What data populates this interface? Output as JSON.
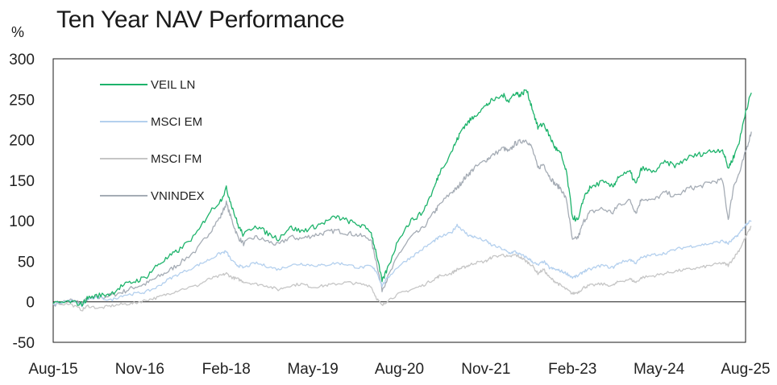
{
  "chart_data": {
    "type": "line",
    "title": "Ten Year NAV Performance",
    "ylabel": "%",
    "xlabel": "",
    "ylim": [
      -50,
      300
    ],
    "yticks": [
      300,
      250,
      200,
      150,
      100,
      50,
      0,
      -50
    ],
    "x_ticks": [
      "Aug-15",
      "Nov-16",
      "Feb-18",
      "May-19",
      "Aug-20",
      "Nov-21",
      "Feb-23",
      "May-24",
      "Aug-25"
    ],
    "x_range": [
      0,
      120
    ],
    "legend_position": "top-left",
    "series": [
      {
        "name": "VEIL LN",
        "color": "#1db36b",
        "points": [
          [
            0,
            -2
          ],
          [
            3,
            0
          ],
          [
            5,
            -3
          ],
          [
            6,
            5
          ],
          [
            8,
            8
          ],
          [
            10,
            10
          ],
          [
            12,
            20
          ],
          [
            14,
            25
          ],
          [
            16,
            30
          ],
          [
            18,
            45
          ],
          [
            20,
            55
          ],
          [
            22,
            65
          ],
          [
            25,
            85
          ],
          [
            27,
            110
          ],
          [
            29,
            125
          ],
          [
            30,
            140
          ],
          [
            31,
            118
          ],
          [
            32,
            95
          ],
          [
            33,
            82
          ],
          [
            35,
            95
          ],
          [
            37,
            85
          ],
          [
            39,
            78
          ],
          [
            41,
            92
          ],
          [
            43,
            87
          ],
          [
            45,
            92
          ],
          [
            47,
            98
          ],
          [
            49,
            105
          ],
          [
            51,
            100
          ],
          [
            53,
            95
          ],
          [
            55,
            88
          ],
          [
            56,
            60
          ],
          [
            57,
            25
          ],
          [
            58,
            42
          ],
          [
            60,
            80
          ],
          [
            62,
            100
          ],
          [
            64,
            110
          ],
          [
            66,
            140
          ],
          [
            67,
            160
          ],
          [
            69,
            185
          ],
          [
            70,
            200
          ],
          [
            71,
            215
          ],
          [
            72,
            222
          ],
          [
            73,
            230
          ],
          [
            75,
            242
          ],
          [
            76,
            248
          ],
          [
            78,
            255
          ],
          [
            79,
            248
          ],
          [
            80,
            258
          ],
          [
            81,
            255
          ],
          [
            82,
            262
          ],
          [
            83,
            240
          ],
          [
            84,
            215
          ],
          [
            85,
            220
          ],
          [
            86,
            205
          ],
          [
            87,
            190
          ],
          [
            88,
            182
          ],
          [
            89,
            158
          ],
          [
            90,
            105
          ],
          [
            91,
            100
          ],
          [
            92,
            130
          ],
          [
            93,
            140
          ],
          [
            95,
            148
          ],
          [
            97,
            142
          ],
          [
            98,
            155
          ],
          [
            100,
            160
          ],
          [
            101,
            145
          ],
          [
            102,
            165
          ],
          [
            104,
            160
          ],
          [
            106,
            172
          ],
          [
            108,
            168
          ],
          [
            110,
            178
          ],
          [
            112,
            182
          ],
          [
            114,
            186
          ],
          [
            116,
            188
          ],
          [
            117,
            165
          ],
          [
            118,
            180
          ],
          [
            119,
            200
          ],
          [
            120,
            235
          ],
          [
            121,
            258
          ]
        ]
      },
      {
        "name": "MSCI EM",
        "color": "#b4d0ee",
        "points": [
          [
            0,
            -3
          ],
          [
            3,
            2
          ],
          [
            5,
            -5
          ],
          [
            6,
            3
          ],
          [
            8,
            5
          ],
          [
            10,
            2
          ],
          [
            12,
            8
          ],
          [
            14,
            10
          ],
          [
            16,
            12
          ],
          [
            18,
            18
          ],
          [
            20,
            28
          ],
          [
            22,
            35
          ],
          [
            25,
            45
          ],
          [
            27,
            52
          ],
          [
            29,
            60
          ],
          [
            30,
            62
          ],
          [
            31,
            50
          ],
          [
            32,
            45
          ],
          [
            33,
            42
          ],
          [
            35,
            48
          ],
          [
            37,
            44
          ],
          [
            39,
            40
          ],
          [
            41,
            45
          ],
          [
            43,
            47
          ],
          [
            45,
            45
          ],
          [
            47,
            45
          ],
          [
            49,
            48
          ],
          [
            51,
            46
          ],
          [
            53,
            42
          ],
          [
            55,
            44
          ],
          [
            56,
            38
          ],
          [
            57,
            20
          ],
          [
            58,
            30
          ],
          [
            60,
            45
          ],
          [
            62,
            55
          ],
          [
            64,
            65
          ],
          [
            66,
            75
          ],
          [
            67,
            80
          ],
          [
            69,
            85
          ],
          [
            70,
            95
          ],
          [
            71,
            88
          ],
          [
            72,
            82
          ],
          [
            73,
            80
          ],
          [
            75,
            75
          ],
          [
            76,
            70
          ],
          [
            78,
            65
          ],
          [
            79,
            60
          ],
          [
            80,
            62
          ],
          [
            81,
            58
          ],
          [
            82,
            55
          ],
          [
            83,
            50
          ],
          [
            84,
            45
          ],
          [
            85,
            50
          ],
          [
            86,
            42
          ],
          [
            87,
            40
          ],
          [
            88,
            38
          ],
          [
            89,
            35
          ],
          [
            90,
            30
          ],
          [
            91,
            32
          ],
          [
            92,
            38
          ],
          [
            93,
            40
          ],
          [
            95,
            45
          ],
          [
            97,
            42
          ],
          [
            98,
            48
          ],
          [
            100,
            52
          ],
          [
            101,
            48
          ],
          [
            102,
            55
          ],
          [
            104,
            58
          ],
          [
            106,
            60
          ],
          [
            108,
            65
          ],
          [
            110,
            68
          ],
          [
            112,
            70
          ],
          [
            114,
            72
          ],
          [
            116,
            75
          ],
          [
            117,
            72
          ],
          [
            118,
            78
          ],
          [
            119,
            85
          ],
          [
            120,
            95
          ],
          [
            121,
            100
          ]
        ]
      },
      {
        "name": "MSCI FM",
        "color": "#c6c6c6",
        "points": [
          [
            0,
            -2
          ],
          [
            3,
            -3
          ],
          [
            5,
            -10
          ],
          [
            6,
            -5
          ],
          [
            8,
            -8
          ],
          [
            10,
            -5
          ],
          [
            12,
            -3
          ],
          [
            14,
            -2
          ],
          [
            16,
            2
          ],
          [
            18,
            5
          ],
          [
            20,
            10
          ],
          [
            22,
            15
          ],
          [
            25,
            20
          ],
          [
            27,
            28
          ],
          [
            29,
            32
          ],
          [
            30,
            35
          ],
          [
            31,
            30
          ],
          [
            32,
            28
          ],
          [
            33,
            25
          ],
          [
            35,
            22
          ],
          [
            37,
            20
          ],
          [
            39,
            15
          ],
          [
            41,
            20
          ],
          [
            43,
            22
          ],
          [
            45,
            18
          ],
          [
            47,
            20
          ],
          [
            49,
            22
          ],
          [
            51,
            24
          ],
          [
            53,
            22
          ],
          [
            55,
            20
          ],
          [
            56,
            5
          ],
          [
            57,
            -5
          ],
          [
            58,
            2
          ],
          [
            60,
            10
          ],
          [
            62,
            15
          ],
          [
            64,
            20
          ],
          [
            66,
            28
          ],
          [
            67,
            32
          ],
          [
            69,
            35
          ],
          [
            70,
            40
          ],
          [
            71,
            42
          ],
          [
            72,
            45
          ],
          [
            73,
            48
          ],
          [
            75,
            50
          ],
          [
            76,
            55
          ],
          [
            78,
            58
          ],
          [
            79,
            55
          ],
          [
            80,
            58
          ],
          [
            81,
            55
          ],
          [
            82,
            50
          ],
          [
            83,
            45
          ],
          [
            84,
            35
          ],
          [
            85,
            40
          ],
          [
            86,
            30
          ],
          [
            87,
            25
          ],
          [
            88,
            20
          ],
          [
            89,
            15
          ],
          [
            90,
            10
          ],
          [
            91,
            12
          ],
          [
            92,
            18
          ],
          [
            93,
            20
          ],
          [
            95,
            22
          ],
          [
            97,
            20
          ],
          [
            98,
            25
          ],
          [
            100,
            28
          ],
          [
            101,
            24
          ],
          [
            102,
            30
          ],
          [
            104,
            32
          ],
          [
            106,
            35
          ],
          [
            108,
            38
          ],
          [
            110,
            40
          ],
          [
            112,
            42
          ],
          [
            114,
            45
          ],
          [
            116,
            48
          ],
          [
            117,
            45
          ],
          [
            118,
            55
          ],
          [
            119,
            65
          ],
          [
            120,
            80
          ],
          [
            121,
            93
          ]
        ]
      },
      {
        "name": "VNINDEX",
        "color": "#a5acb5",
        "points": [
          [
            0,
            -3
          ],
          [
            3,
            2
          ],
          [
            5,
            -2
          ],
          [
            6,
            4
          ],
          [
            8,
            5
          ],
          [
            10,
            8
          ],
          [
            12,
            12
          ],
          [
            14,
            18
          ],
          [
            16,
            22
          ],
          [
            18,
            30
          ],
          [
            20,
            38
          ],
          [
            22,
            48
          ],
          [
            25,
            65
          ],
          [
            27,
            85
          ],
          [
            29,
            105
          ],
          [
            30,
            122
          ],
          [
            31,
            100
          ],
          [
            32,
            80
          ],
          [
            33,
            72
          ],
          [
            35,
            80
          ],
          [
            37,
            75
          ],
          [
            39,
            70
          ],
          [
            41,
            80
          ],
          [
            43,
            78
          ],
          [
            45,
            82
          ],
          [
            47,
            85
          ],
          [
            49,
            88
          ],
          [
            51,
            85
          ],
          [
            53,
            82
          ],
          [
            55,
            78
          ],
          [
            56,
            50
          ],
          [
            57,
            15
          ],
          [
            58,
            30
          ],
          [
            60,
            60
          ],
          [
            62,
            80
          ],
          [
            64,
            90
          ],
          [
            66,
            110
          ],
          [
            67,
            120
          ],
          [
            69,
            135
          ],
          [
            70,
            140
          ],
          [
            71,
            150
          ],
          [
            72,
            158
          ],
          [
            73,
            165
          ],
          [
            75,
            175
          ],
          [
            76,
            180
          ],
          [
            78,
            190
          ],
          [
            79,
            185
          ],
          [
            80,
            195
          ],
          [
            81,
            198
          ],
          [
            82,
            200
          ],
          [
            83,
            190
          ],
          [
            84,
            165
          ],
          [
            85,
            170
          ],
          [
            86,
            155
          ],
          [
            87,
            145
          ],
          [
            88,
            140
          ],
          [
            89,
            125
          ],
          [
            90,
            75
          ],
          [
            91,
            80
          ],
          [
            92,
            100
          ],
          [
            93,
            110
          ],
          [
            95,
            115
          ],
          [
            97,
            110
          ],
          [
            98,
            120
          ],
          [
            100,
            125
          ],
          [
            101,
            110
          ],
          [
            102,
            128
          ],
          [
            104,
            125
          ],
          [
            106,
            135
          ],
          [
            108,
            130
          ],
          [
            110,
            140
          ],
          [
            112,
            142
          ],
          [
            114,
            148
          ],
          [
            116,
            150
          ],
          [
            117,
            102
          ],
          [
            118,
            145
          ],
          [
            119,
            160
          ],
          [
            120,
            185
          ],
          [
            121,
            210
          ]
        ]
      }
    ]
  }
}
